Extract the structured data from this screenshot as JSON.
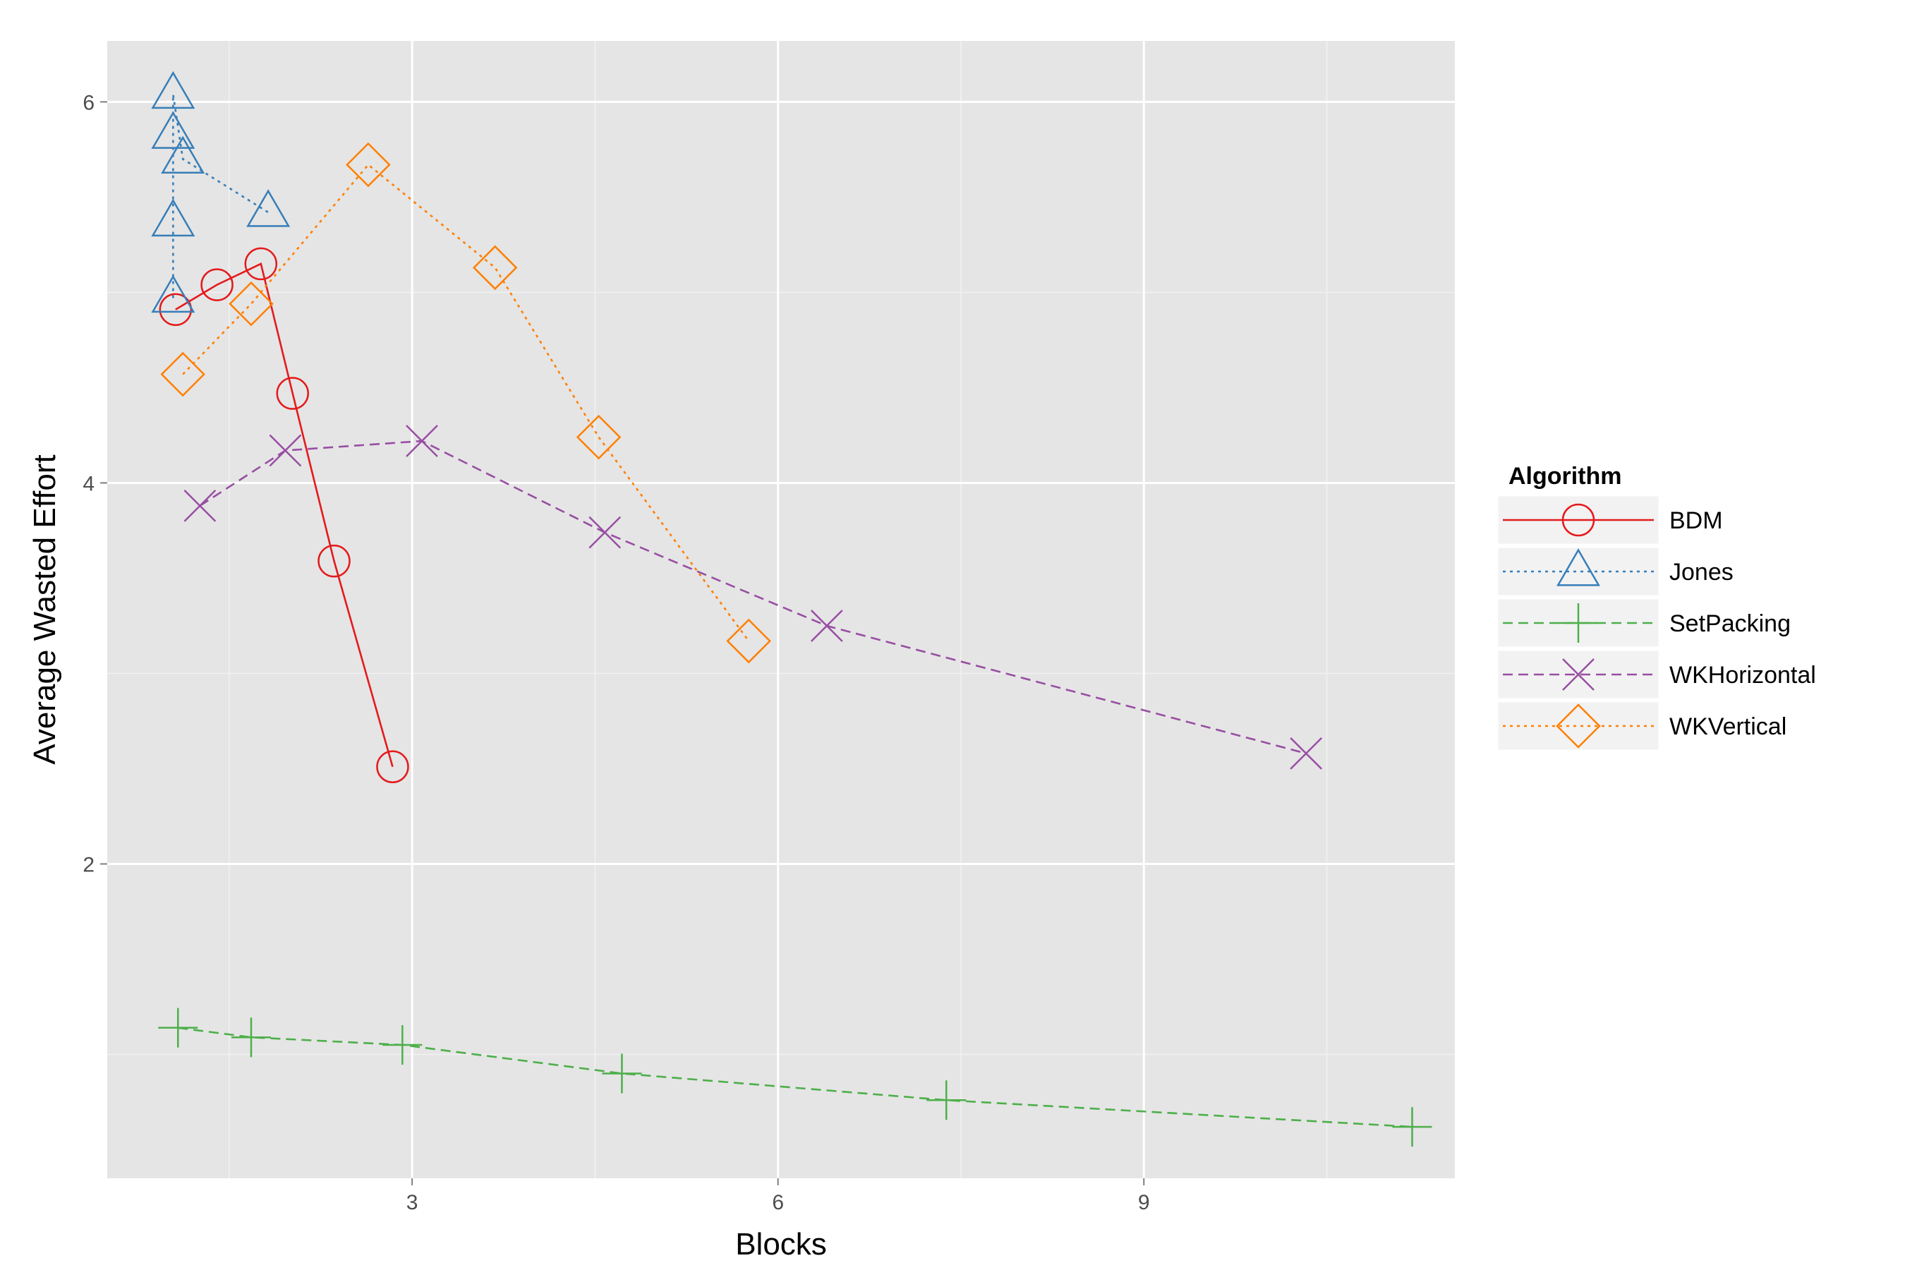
{
  "chart_data": {
    "type": "line",
    "title": "",
    "xlabel": "Blocks",
    "ylabel": "Average Wasted Effort",
    "xlim": [
      0.5,
      11.55
    ],
    "ylim": [
      0.35,
      6.32
    ],
    "x_ticks": [
      3,
      6,
      9
    ],
    "x_tick_labels": [
      "3",
      "6",
      "9"
    ],
    "y_ticks": [
      2,
      4,
      6
    ],
    "y_tick_labels": [
      "2",
      "4",
      "6"
    ],
    "x_minor_ticks": [
      1.5,
      4.5,
      7.5,
      10.5
    ],
    "y_minor_ticks": [
      1,
      3,
      5
    ],
    "grid": true,
    "legend": {
      "title": "Algorithm",
      "position": "right"
    },
    "series": [
      {
        "name": "BDM",
        "color": "#e41a1c",
        "line_style": "solid",
        "marker": "circle",
        "x": [
          1.06,
          1.4,
          1.76,
          2.02,
          2.36,
          2.84
        ],
        "y": [
          4.91,
          5.04,
          5.15,
          4.47,
          3.59,
          2.51
        ]
      },
      {
        "name": "Jones",
        "color": "#377eb8",
        "line_style": "dotted",
        "marker": "triangle",
        "x": [
          1.04,
          1.04,
          1.04,
          1.04,
          1.12,
          1.82
        ],
        "y": [
          4.97,
          5.37,
          5.83,
          6.04,
          5.7,
          5.42
        ]
      },
      {
        "name": "SetPacking",
        "color": "#4daf4a",
        "line_style": "dashed",
        "marker": "plus",
        "x": [
          1.08,
          1.68,
          2.92,
          4.72,
          7.38,
          11.2
        ],
        "y": [
          1.14,
          1.09,
          1.05,
          0.9,
          0.76,
          0.62
        ]
      },
      {
        "name": "WKHorizontal",
        "color": "#984ea3",
        "line_style": "dashed",
        "marker": "x",
        "x": [
          1.26,
          1.96,
          3.08,
          4.58,
          6.4,
          10.33
        ],
        "y": [
          3.88,
          4.17,
          4.22,
          3.74,
          3.25,
          2.58
        ]
      },
      {
        "name": "WKVertical",
        "color": "#ff7f00",
        "line_style": "dotted",
        "marker": "diamond",
        "x": [
          1.12,
          1.68,
          2.64,
          3.68,
          4.53,
          5.76
        ],
        "y": [
          4.57,
          4.94,
          5.67,
          5.13,
          4.24,
          3.17
        ]
      }
    ]
  }
}
